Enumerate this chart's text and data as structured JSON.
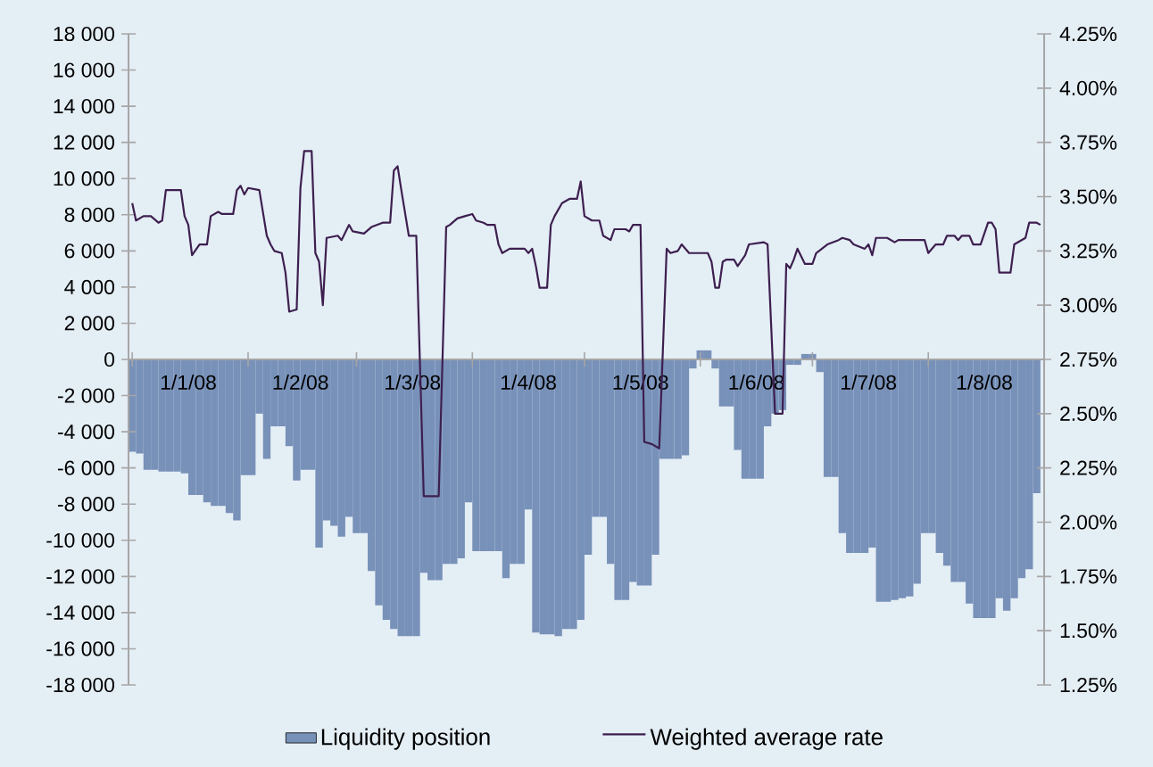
{
  "chart_data": {
    "type": "bar",
    "xlim": [
      "2007-12-31",
      "2008-09-01"
    ],
    "xticks": [
      {
        "value": "2008-01-01",
        "label": null
      },
      {
        "value": "2008-01-16",
        "label": "1/1/08"
      },
      {
        "value": "2008-02-01",
        "label": null
      },
      {
        "value": "2008-02-15",
        "label": "1/2/08"
      },
      {
        "value": "2008-03-01",
        "label": null
      },
      {
        "value": "2008-03-16",
        "label": "1/3/08"
      },
      {
        "value": "2008-04-01",
        "label": null
      },
      {
        "value": "2008-04-16",
        "label": "1/4/08"
      },
      {
        "value": "2008-05-01",
        "label": null
      },
      {
        "value": "2008-05-16",
        "label": "1/5/08"
      },
      {
        "value": "2008-06-01",
        "label": null
      },
      {
        "value": "2008-06-16",
        "label": "1/6/08"
      },
      {
        "value": "2008-07-01",
        "label": null
      },
      {
        "value": "2008-07-16",
        "label": "1/7/08"
      },
      {
        "value": "2008-08-01",
        "label": null
      },
      {
        "value": "2008-08-16",
        "label": "1/8/08"
      },
      {
        "value": "2008-09-01",
        "label": null
      }
    ],
    "ylim": [
      -18000,
      18000
    ],
    "yticks": [
      {
        "value": -18000,
        "label": "-18 000"
      },
      {
        "value": -16000,
        "label": "-16 000"
      },
      {
        "value": -14000,
        "label": "-14 000"
      },
      {
        "value": -12000,
        "label": "-12 000"
      },
      {
        "value": -10000,
        "label": "-10 000"
      },
      {
        "value": -8000,
        "label": "-8 000"
      },
      {
        "value": -6000,
        "label": "-6 000"
      },
      {
        "value": -4000,
        "label": "-4 000"
      },
      {
        "value": -2000,
        "label": "-2 000"
      },
      0,
      {
        "value": 2000,
        "label": "2 000"
      },
      {
        "value": 4000,
        "label": "4 000"
      },
      {
        "value": 6000,
        "label": "6 000"
      },
      {
        "value": 8000,
        "label": "8 000"
      },
      {
        "value": 10000,
        "label": "10 000"
      },
      {
        "value": 12000,
        "label": "12 000"
      },
      {
        "value": 14000,
        "label": "14 000"
      },
      {
        "value": 16000,
        "label": "16 000"
      },
      {
        "value": 18000,
        "label": "18 000"
      }
    ],
    "y2lim": [
      1.25,
      4.25
    ],
    "y2ticks": [
      {
        "value": 1.25,
        "label": "1.25%"
      },
      {
        "value": 1.5,
        "label": "1.50%"
      },
      {
        "value": 1.75,
        "label": "1.75%"
      },
      {
        "value": 2.0,
        "label": "2.00%"
      },
      {
        "value": 2.25,
        "label": "2.25%"
      },
      {
        "value": 2.5,
        "label": "2.50%"
      },
      {
        "value": 2.75,
        "label": "2.75%"
      },
      {
        "value": 3.0,
        "label": "3.00%"
      },
      {
        "value": 3.25,
        "label": "3.25%"
      },
      {
        "value": 3.5,
        "label": "3.50%"
      },
      {
        "value": 3.75,
        "label": "3.75%"
      },
      {
        "value": 4.0,
        "label": "4.00%"
      },
      {
        "value": 4.25,
        "label": "4.25%"
      }
    ],
    "legend": "bottom",
    "series": [
      {
        "name": "Liquidity position",
        "color": "#7891b9",
        "x": [
          "2008-01-01",
          "2008-01-03",
          "2008-01-05",
          "2008-01-07",
          "2008-01-09",
          "2008-01-11",
          "2008-01-13",
          "2008-01-15",
          "2008-01-17",
          "2008-01-19",
          "2008-01-21",
          "2008-01-23",
          "2008-01-25",
          "2008-01-27",
          "2008-01-29",
          "2008-01-31",
          "2008-02-02",
          "2008-02-04",
          "2008-02-06",
          "2008-02-08",
          "2008-02-10",
          "2008-02-12",
          "2008-02-14",
          "2008-02-16",
          "2008-02-18",
          "2008-02-20",
          "2008-02-22",
          "2008-02-24",
          "2008-02-26",
          "2008-02-28",
          "2008-03-01",
          "2008-03-03",
          "2008-03-05",
          "2008-03-07",
          "2008-03-09",
          "2008-03-11",
          "2008-03-13",
          "2008-03-15",
          "2008-03-17",
          "2008-03-19",
          "2008-03-21",
          "2008-03-23",
          "2008-03-25",
          "2008-03-27",
          "2008-03-29",
          "2008-03-31",
          "2008-04-02",
          "2008-04-04",
          "2008-04-06",
          "2008-04-08",
          "2008-04-10",
          "2008-04-12",
          "2008-04-14",
          "2008-04-16",
          "2008-04-18",
          "2008-04-20",
          "2008-04-22",
          "2008-04-24",
          "2008-04-26",
          "2008-04-28",
          "2008-04-30",
          "2008-05-02",
          "2008-05-04",
          "2008-05-06",
          "2008-05-08",
          "2008-05-10",
          "2008-05-12",
          "2008-05-14",
          "2008-05-16",
          "2008-05-18",
          "2008-05-20",
          "2008-05-22",
          "2008-05-24",
          "2008-05-26",
          "2008-05-28",
          "2008-05-30",
          "2008-06-01",
          "2008-06-03",
          "2008-06-05",
          "2008-06-07",
          "2008-06-09",
          "2008-06-11",
          "2008-06-13",
          "2008-06-15",
          "2008-06-17",
          "2008-06-19",
          "2008-06-21",
          "2008-06-23",
          "2008-06-25",
          "2008-06-27",
          "2008-06-29",
          "2008-07-01",
          "2008-07-03",
          "2008-07-05",
          "2008-07-07",
          "2008-07-09",
          "2008-07-11",
          "2008-07-13",
          "2008-07-15",
          "2008-07-17",
          "2008-07-19",
          "2008-07-21",
          "2008-07-23",
          "2008-07-25",
          "2008-07-27",
          "2008-07-29",
          "2008-07-31",
          "2008-08-02",
          "2008-08-04",
          "2008-08-06",
          "2008-08-08",
          "2008-08-10",
          "2008-08-12",
          "2008-08-14",
          "2008-08-16",
          "2008-08-18",
          "2008-08-20",
          "2008-08-22",
          "2008-08-24",
          "2008-08-26",
          "2008-08-28",
          "2008-08-30"
        ],
        "values": [
          -5100,
          -5200,
          -6100,
          -6100,
          -6200,
          -6200,
          -6200,
          -6300,
          -7500,
          -7500,
          -7900,
          -8100,
          -8100,
          -8500,
          -8900,
          -6400,
          -6400,
          -3000,
          -5500,
          -3700,
          -3700,
          -4800,
          -6700,
          -6100,
          -6100,
          -10400,
          -8900,
          -9200,
          -9800,
          -8700,
          -9600,
          -9600,
          -11700,
          -13600,
          -14400,
          -14900,
          -15300,
          -15300,
          -15300,
          -11800,
          -12200,
          -12200,
          -11300,
          -11300,
          -11000,
          -7900,
          -10600,
          -10600,
          -10600,
          -10600,
          -12100,
          -11300,
          -11300,
          -8300,
          -15100,
          -15200,
          -15200,
          -15300,
          -14900,
          -14900,
          -14400,
          -10800,
          -8700,
          -8700,
          -11300,
          -13300,
          -13300,
          -12300,
          -12500,
          -12500,
          -10800,
          -5500,
          -5500,
          -5500,
          -5300,
          -500,
          500,
          500,
          -500,
          -2600,
          -2600,
          -5000,
          -6600,
          -6600,
          -6600,
          -3700,
          -3000,
          -2800,
          -300,
          -300,
          300,
          300,
          -700,
          -6500,
          -6500,
          -9600,
          -10700,
          -10700,
          -10700,
          -10400,
          -13400,
          -13400,
          -13300,
          -13200,
          -13100,
          -12400,
          -9600,
          -9600,
          -10700,
          -11400,
          -12300,
          -12300,
          -13500,
          -14300,
          -14300,
          -14300,
          -13200,
          -13900,
          -13200,
          -12100,
          -11600,
          -7400
        ]
      },
      {
        "name": "Weighted average rate",
        "type": "line",
        "axis": "y2",
        "color": "#3d1f4f",
        "x": [
          "2008-01-01",
          "2008-01-02",
          "2008-01-04",
          "2008-01-06",
          "2008-01-08",
          "2008-01-09",
          "2008-01-10",
          "2008-01-14",
          "2008-01-15",
          "2008-01-16",
          "2008-01-17",
          "2008-01-19",
          "2008-01-21",
          "2008-01-22",
          "2008-01-24",
          "2008-01-25",
          "2008-01-28",
          "2008-01-29",
          "2008-01-30",
          "2008-01-31",
          "2008-02-01",
          "2008-02-04",
          "2008-02-06",
          "2008-02-07",
          "2008-02-08",
          "2008-02-10",
          "2008-02-11",
          "2008-02-12",
          "2008-02-14",
          "2008-02-15",
          "2008-02-16",
          "2008-02-18",
          "2008-02-19",
          "2008-02-20",
          "2008-02-21",
          "2008-02-22",
          "2008-02-25",
          "2008-02-26",
          "2008-02-28",
          "2008-02-29",
          "2008-03-03",
          "2008-03-05",
          "2008-03-08",
          "2008-03-10",
          "2008-03-11",
          "2008-03-12",
          "2008-03-13",
          "2008-03-15",
          "2008-03-17",
          "2008-03-19",
          "2008-03-23",
          "2008-03-25",
          "2008-03-26",
          "2008-03-28",
          "2008-03-30",
          "2008-04-01",
          "2008-04-02",
          "2008-04-04",
          "2008-04-05",
          "2008-04-07",
          "2008-04-08",
          "2008-04-09",
          "2008-04-11",
          "2008-04-15",
          "2008-04-16",
          "2008-04-17",
          "2008-04-18",
          "2008-04-19",
          "2008-04-21",
          "2008-04-22",
          "2008-04-23",
          "2008-04-25",
          "2008-04-27",
          "2008-04-29",
          "2008-04-30",
          "2008-05-01",
          "2008-05-03",
          "2008-05-05",
          "2008-05-06",
          "2008-05-08",
          "2008-05-09",
          "2008-05-12",
          "2008-05-13",
          "2008-05-14",
          "2008-05-16",
          "2008-05-17",
          "2008-05-19",
          "2008-05-21",
          "2008-05-23",
          "2008-05-24",
          "2008-05-26",
          "2008-05-27",
          "2008-05-29",
          "2008-05-30",
          "2008-06-03",
          "2008-06-04",
          "2008-06-05",
          "2008-06-06",
          "2008-06-07",
          "2008-06-08",
          "2008-06-10",
          "2008-06-11",
          "2008-06-13",
          "2008-06-14",
          "2008-06-18",
          "2008-06-19",
          "2008-06-20",
          "2008-06-21",
          "2008-06-23",
          "2008-06-24",
          "2008-06-25",
          "2008-06-26",
          "2008-06-27",
          "2008-06-29",
          "2008-07-01",
          "2008-07-02",
          "2008-07-05",
          "2008-07-08",
          "2008-07-09",
          "2008-07-11",
          "2008-07-12",
          "2008-07-15",
          "2008-07-16",
          "2008-07-17",
          "2008-07-18",
          "2008-07-21",
          "2008-07-23",
          "2008-07-24",
          "2008-07-31",
          "2008-08-01",
          "2008-08-03",
          "2008-08-05",
          "2008-08-06",
          "2008-08-08",
          "2008-08-09",
          "2008-08-10",
          "2008-08-12",
          "2008-08-13",
          "2008-08-15",
          "2008-08-17",
          "2008-08-18",
          "2008-08-19",
          "2008-08-20",
          "2008-08-23",
          "2008-08-24",
          "2008-08-27",
          "2008-08-28",
          "2008-08-30",
          "2008-08-31"
        ],
        "values": [
          3.47,
          3.39,
          3.41,
          3.41,
          3.38,
          3.39,
          3.53,
          3.53,
          3.41,
          3.37,
          3.23,
          3.28,
          3.28,
          3.41,
          3.43,
          3.42,
          3.42,
          3.53,
          3.55,
          3.51,
          3.54,
          3.53,
          3.32,
          3.28,
          3.25,
          3.24,
          3.15,
          2.97,
          2.98,
          3.54,
          3.71,
          3.71,
          3.24,
          3.2,
          3.0,
          3.31,
          3.32,
          3.3,
          3.37,
          3.34,
          3.33,
          3.36,
          3.38,
          3.38,
          3.62,
          3.64,
          3.53,
          3.32,
          3.32,
          2.12,
          2.12,
          3.36,
          3.37,
          3.4,
          3.41,
          3.42,
          3.39,
          3.38,
          3.37,
          3.37,
          3.28,
          3.24,
          3.26,
          3.26,
          3.24,
          3.26,
          3.18,
          3.08,
          3.08,
          3.37,
          3.41,
          3.47,
          3.49,
          3.49,
          3.57,
          3.41,
          3.39,
          3.39,
          3.32,
          3.3,
          3.35,
          3.35,
          3.34,
          3.37,
          3.37,
          2.37,
          2.36,
          2.34,
          3.26,
          3.24,
          3.25,
          3.28,
          3.24,
          3.24,
          3.24,
          3.2,
          3.08,
          3.08,
          3.2,
          3.21,
          3.21,
          3.18,
          3.23,
          3.28,
          3.29,
          3.28,
          2.89,
          2.5,
          2.5,
          3.19,
          3.17,
          3.21,
          3.26,
          3.19,
          3.19,
          3.24,
          3.28,
          3.3,
          3.31,
          3.3,
          3.28,
          3.26,
          3.28,
          3.23,
          3.31,
          3.31,
          3.29,
          3.3,
          3.3,
          3.24,
          3.28,
          3.28,
          3.32,
          3.32,
          3.3,
          3.32,
          3.32,
          3.28,
          3.28,
          3.38,
          3.38,
          3.35,
          3.15,
          3.15,
          3.28,
          3.31,
          3.38,
          3.38,
          3.37
        ]
      }
    ]
  }
}
